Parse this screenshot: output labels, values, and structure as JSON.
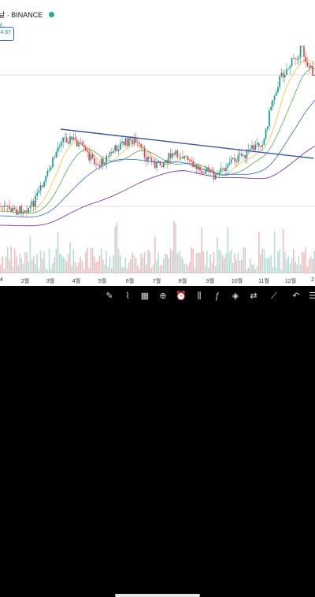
{
  "header": {
    "symbol_label": "날 · BINANCE",
    "status_color": "#22ab94"
  },
  "indicator": {
    "value_text": "4.67",
    "small_text": "0"
  },
  "chart": {
    "up_color": "#089981",
    "down_color": "#f23645",
    "trendline_color": "#3a55b4",
    "x_labels": [
      "4",
      "2월",
      "3월",
      "4월",
      "5월",
      "6월",
      "7월",
      "8월",
      "9월",
      "10월",
      "11월",
      "12월",
      "2"
    ]
  },
  "toolbar": {
    "icons": [
      {
        "name": "pencil-icon",
        "glyph": "✎"
      },
      {
        "name": "brush-icon",
        "glyph": "⌇"
      },
      {
        "name": "grid-icon",
        "glyph": "▦"
      },
      {
        "name": "plus-circle-icon",
        "glyph": "⊕"
      },
      {
        "name": "alarm-icon",
        "glyph": "⏰"
      },
      {
        "name": "candles-icon",
        "glyph": "⫼"
      },
      {
        "name": "indicators-icon",
        "glyph": "ƒ"
      },
      {
        "name": "layers-icon",
        "glyph": "◈"
      },
      {
        "name": "compare-icon",
        "glyph": "⇄"
      },
      {
        "name": "strategy-icon",
        "glyph": "⟋"
      },
      {
        "name": "undo-icon",
        "glyph": "↶"
      },
      {
        "name": "menu-icon",
        "glyph": "☰"
      }
    ]
  }
}
